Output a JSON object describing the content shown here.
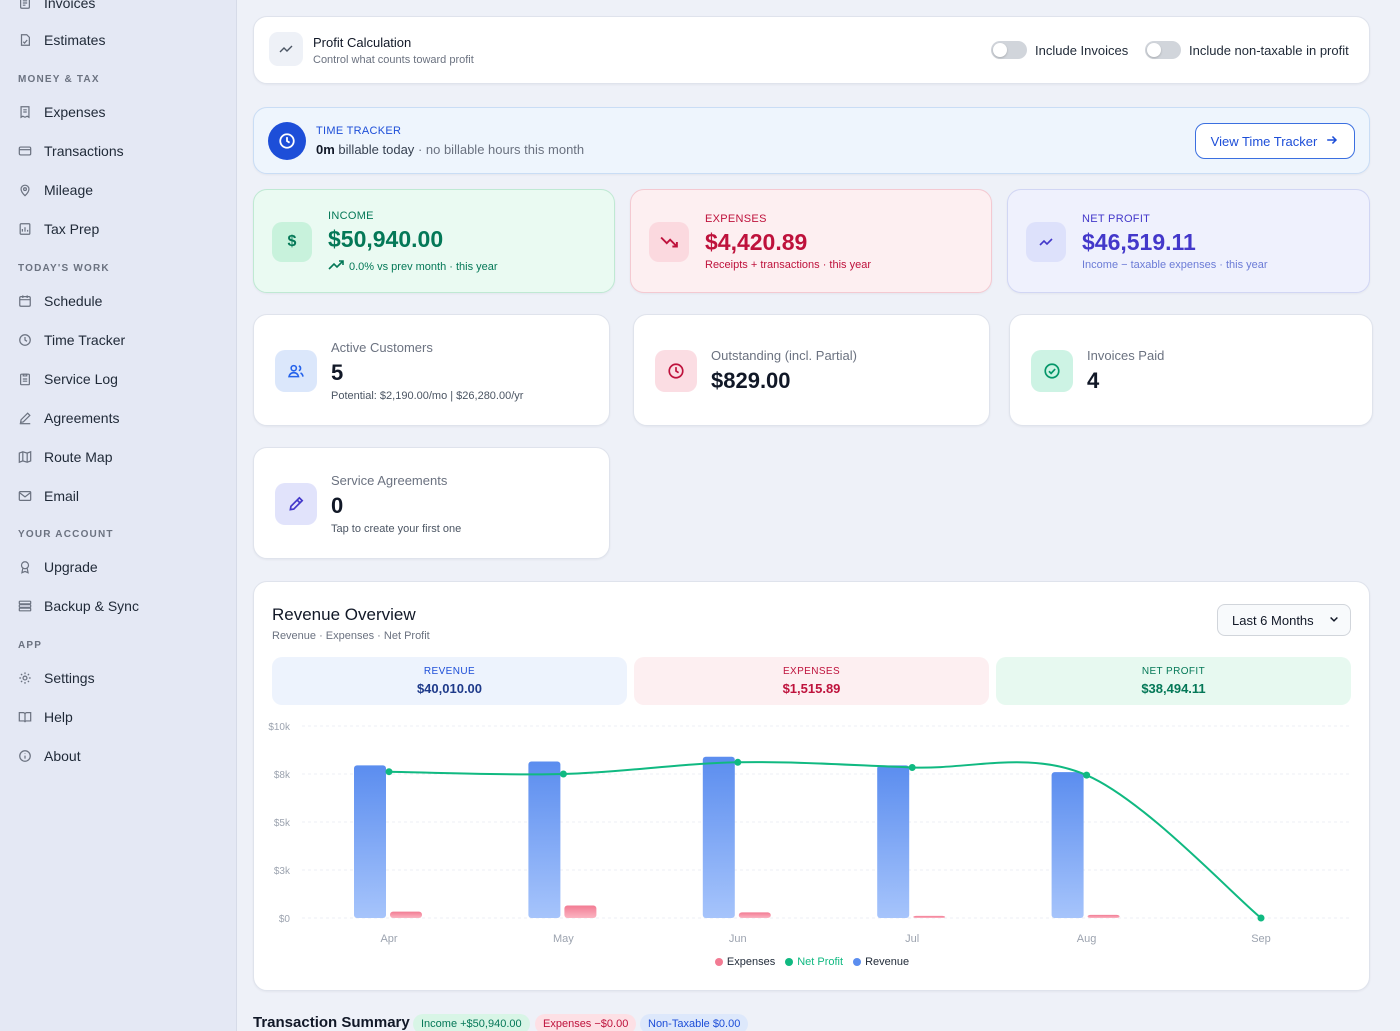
{
  "sidebar": {
    "items_top": [
      {
        "label": "Invoices",
        "icon": "invoice-icon"
      },
      {
        "label": "Estimates",
        "icon": "estimate-icon"
      }
    ],
    "sections": [
      {
        "title": "MONEY & TAX",
        "items": [
          {
            "label": "Expenses",
            "icon": "receipt-icon"
          },
          {
            "label": "Transactions",
            "icon": "credit-card-icon"
          },
          {
            "label": "Mileage",
            "icon": "map-pin-icon"
          },
          {
            "label": "Tax Prep",
            "icon": "calculator-icon"
          }
        ]
      },
      {
        "title": "TODAY'S WORK",
        "items": [
          {
            "label": "Schedule",
            "icon": "calendar-icon"
          },
          {
            "label": "Time Tracker",
            "icon": "clock-icon"
          },
          {
            "label": "Service Log",
            "icon": "clipboard-icon"
          },
          {
            "label": "Agreements",
            "icon": "pen-icon"
          },
          {
            "label": "Route Map",
            "icon": "map-icon"
          },
          {
            "label": "Email",
            "icon": "mail-icon"
          }
        ]
      },
      {
        "title": "YOUR ACCOUNT",
        "items": [
          {
            "label": "Upgrade",
            "icon": "award-icon"
          },
          {
            "label": "Backup & Sync",
            "icon": "database-icon"
          }
        ]
      },
      {
        "title": "APP",
        "items": [
          {
            "label": "Settings",
            "icon": "gear-icon"
          },
          {
            "label": "Help",
            "icon": "book-icon"
          },
          {
            "label": "About",
            "icon": "info-icon"
          }
        ]
      }
    ]
  },
  "profit_calc": {
    "title": "Profit Calculation",
    "subtitle": "Control what counts toward profit",
    "toggle_invoices": "Include Invoices",
    "toggle_nontaxable": "Include non-taxable in profit",
    "toggle_invoices_on": false,
    "toggle_nontaxable_on": false
  },
  "time_tracker": {
    "label": "TIME TRACKER",
    "amount": "0m",
    "text": "billable today",
    "note": "· no billable hours this month",
    "button": "View Time Tracker"
  },
  "stats": {
    "income": {
      "label": "INCOME",
      "value": "$50,940.00",
      "sub": "0.0% vs prev month · this year"
    },
    "expenses": {
      "label": "EXPENSES",
      "value": "$4,420.89",
      "sub": "Receipts + transactions · this year"
    },
    "net_profit": {
      "label": "NET PROFIT",
      "value": "$46,519.11",
      "sub": "Income − taxable expenses · this year"
    }
  },
  "metrics": {
    "active_customers": {
      "label": "Active Customers",
      "value": "5",
      "sub": "Potential: $2,190.00/mo | $26,280.00/yr"
    },
    "outstanding": {
      "label": "Outstanding (incl. Partial)",
      "value": "$829.00"
    },
    "invoices_paid": {
      "label": "Invoices Paid",
      "value": "4"
    },
    "service_agreements": {
      "label": "Service Agreements",
      "value": "0",
      "sub": "Tap to create your first one"
    }
  },
  "revenue_overview": {
    "title": "Revenue Overview",
    "subtitle": "Revenue · Expenses · Net Profit",
    "range": "Last 6 Months",
    "summary": {
      "revenue": {
        "label": "REVENUE",
        "value": "$40,010.00"
      },
      "expenses": {
        "label": "EXPENSES",
        "value": "$1,515.89"
      },
      "net_profit": {
        "label": "NET PROFIT",
        "value": "$38,494.11"
      }
    },
    "legend": {
      "expenses": "Expenses",
      "net_profit": "Net Profit",
      "revenue": "Revenue"
    }
  },
  "chart_data": {
    "type": "bar",
    "categories": [
      "Apr",
      "May",
      "Jun",
      "Jul",
      "Aug",
      "Sep"
    ],
    "series": [
      {
        "name": "Revenue",
        "type": "bar",
        "color": "#5b8def",
        "values": [
          7950,
          8150,
          8400,
          7950,
          7600,
          0
        ]
      },
      {
        "name": "Expenses",
        "type": "bar",
        "color": "#f27b93",
        "values": [
          330,
          650,
          290,
          110,
          160,
          0
        ]
      },
      {
        "name": "Net Profit",
        "type": "line",
        "color": "#10b981",
        "values": [
          7620,
          7500,
          8110,
          7840,
          7440,
          0
        ]
      }
    ],
    "y_ticks": [
      "$0",
      "$3k",
      "$5k",
      "$8k",
      "$10k"
    ],
    "y_tick_values": [
      0,
      2500,
      5000,
      7500,
      10000
    ],
    "ylim": [
      0,
      10000
    ],
    "grid": true
  },
  "transaction_summary": {
    "title": "Transaction Summary",
    "income": "Income +$50,940.00",
    "expenses": "Expenses −$0.00",
    "non_taxable": "Non-Taxable $0.00"
  },
  "colors": {
    "accent": "#1d4ed8",
    "income": "#047857",
    "expenses": "#be123c",
    "net_profit": "#4338ca"
  }
}
